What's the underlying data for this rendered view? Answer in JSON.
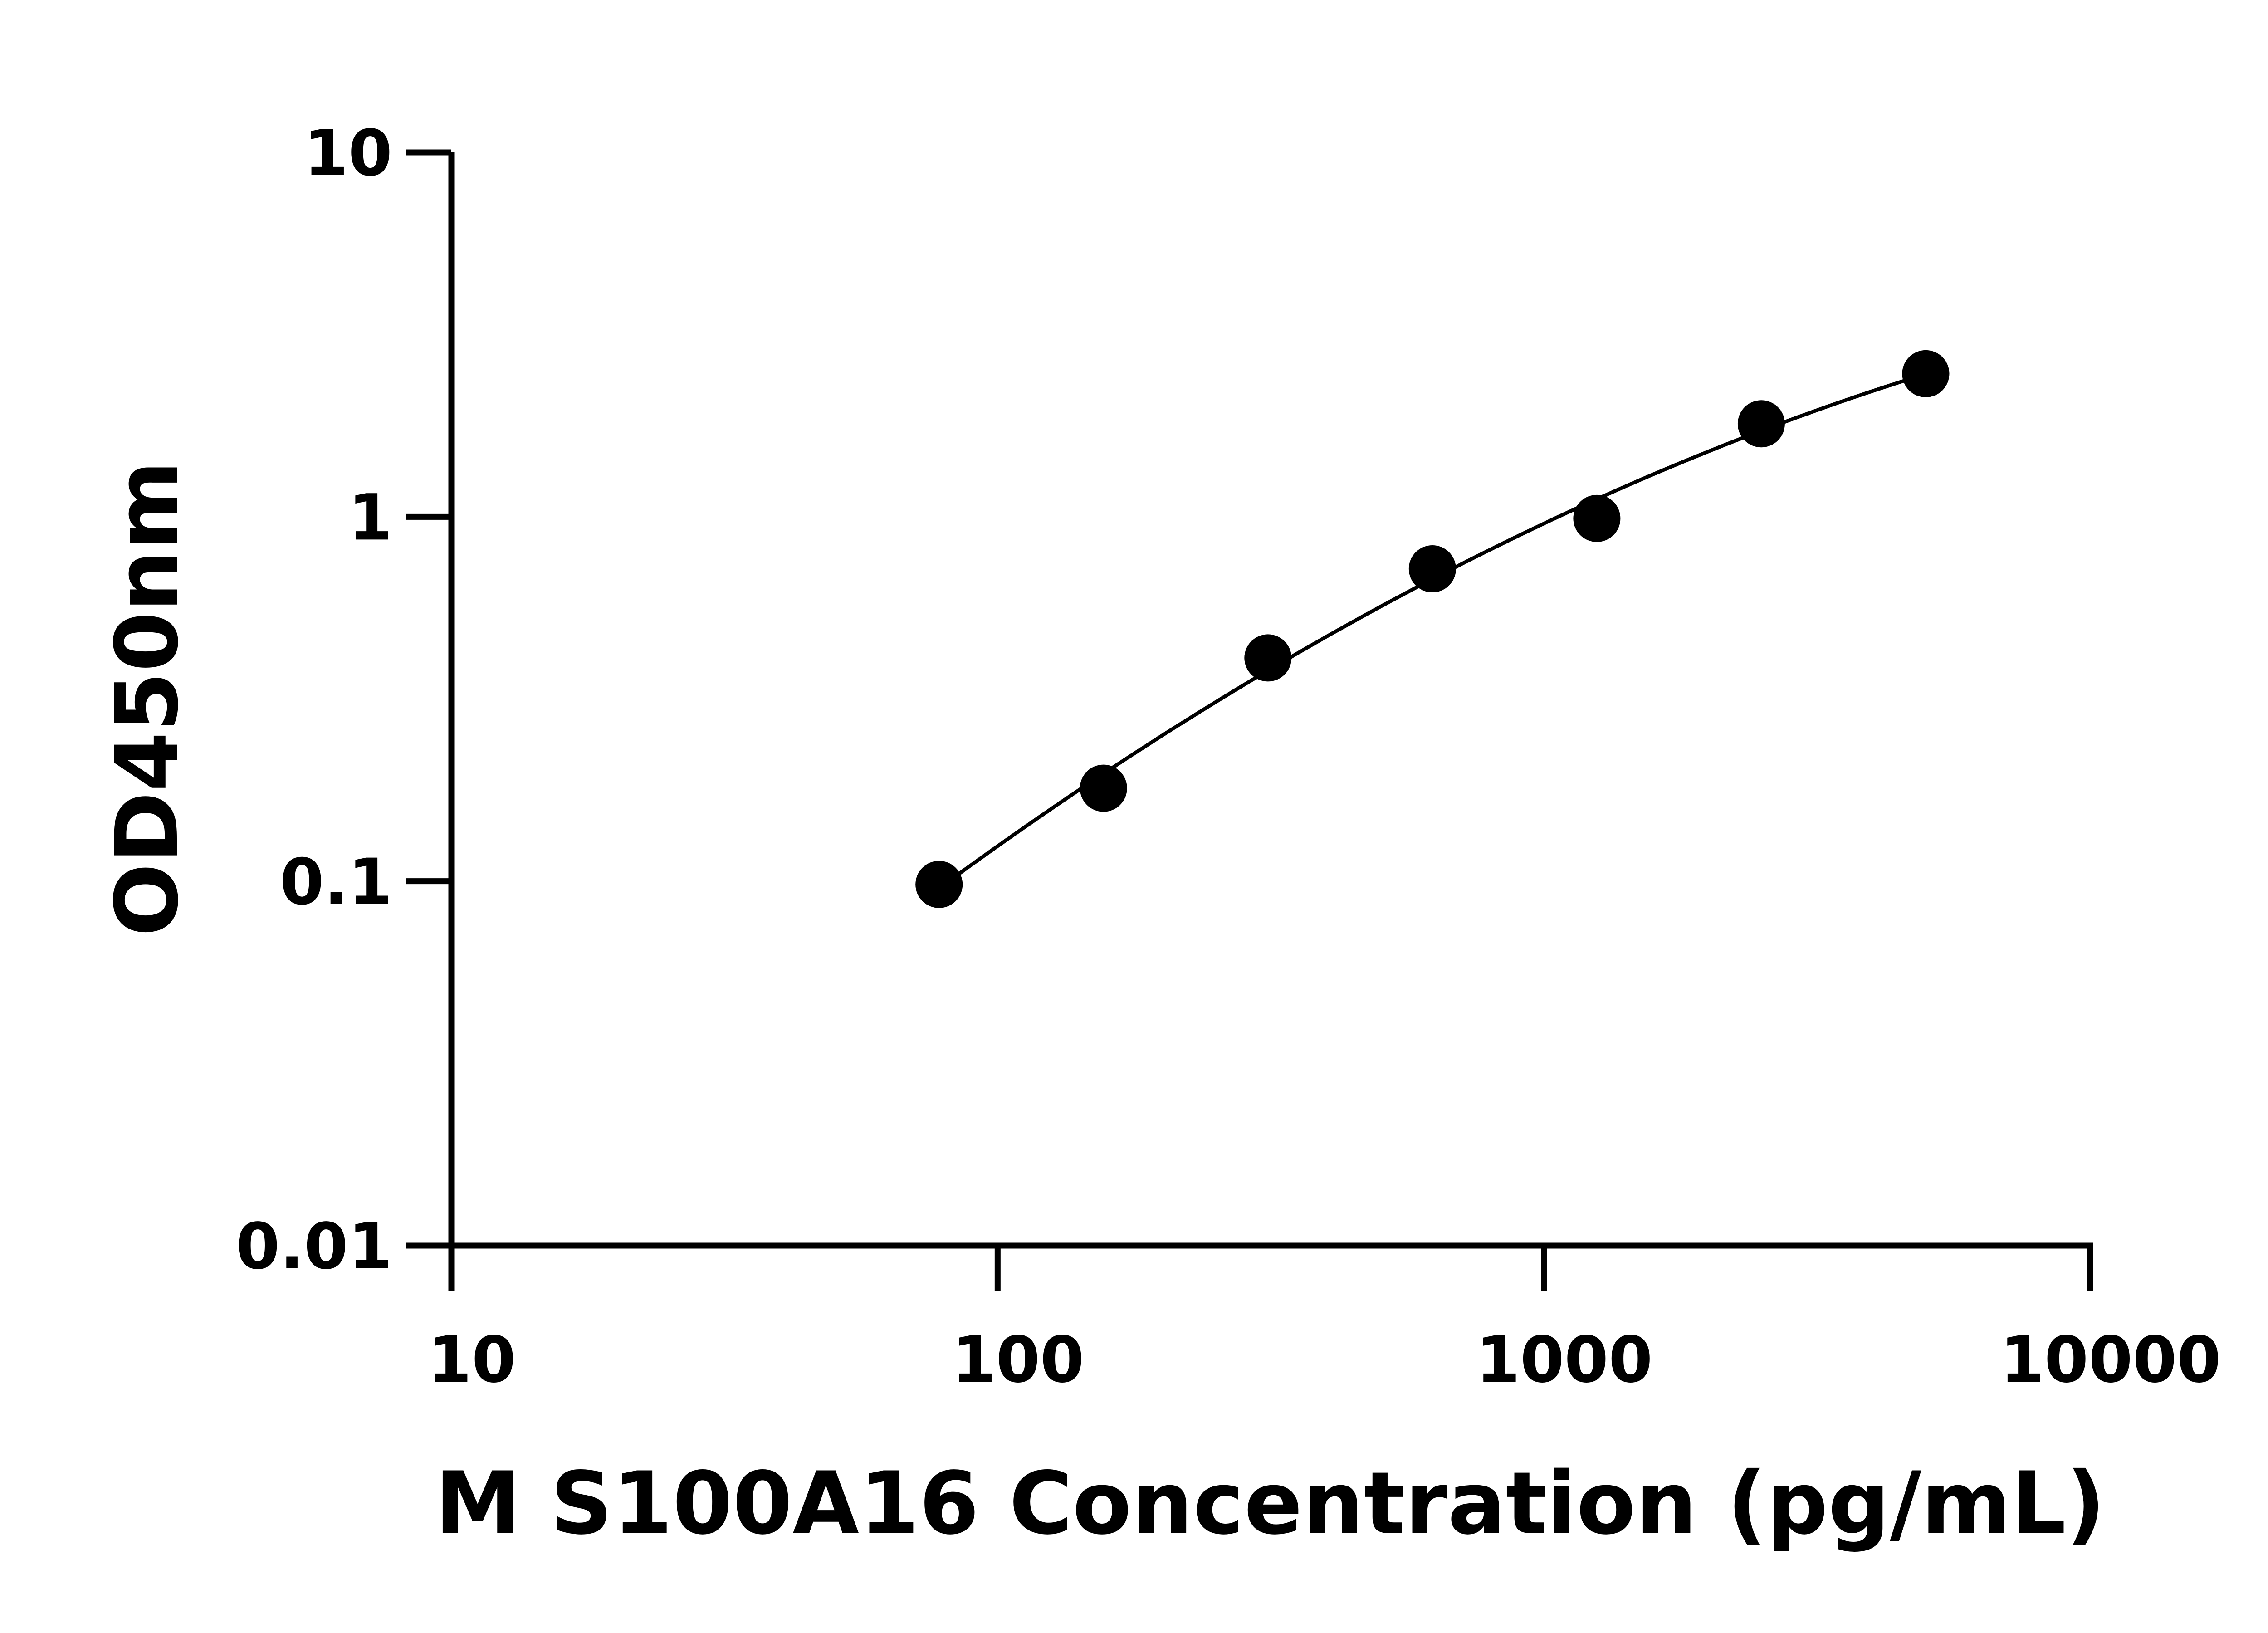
{
  "chart_data": {
    "type": "scatter",
    "title": "",
    "xlabel": "M S100A16 Concentration (pg/mL)",
    "ylabel": "OD450nm",
    "xscale": "log",
    "yscale": "log",
    "xlim": [
      10,
      10000
    ],
    "ylim": [
      0.01,
      10
    ],
    "xticks": [
      "10",
      "100",
      "1000",
      "10000"
    ],
    "yticks": [
      "0.01",
      "0.1",
      "1",
      "10"
    ],
    "grid": false,
    "legend": "none",
    "fit_line": true,
    "marker_color": "#000000",
    "line_color": "#000000",
    "x": [
      78.125,
      156.25,
      312.5,
      625,
      1250,
      2500,
      5000
    ],
    "y": [
      0.098,
      0.18,
      0.41,
      0.72,
      0.99,
      1.8,
      2.47
    ]
  }
}
